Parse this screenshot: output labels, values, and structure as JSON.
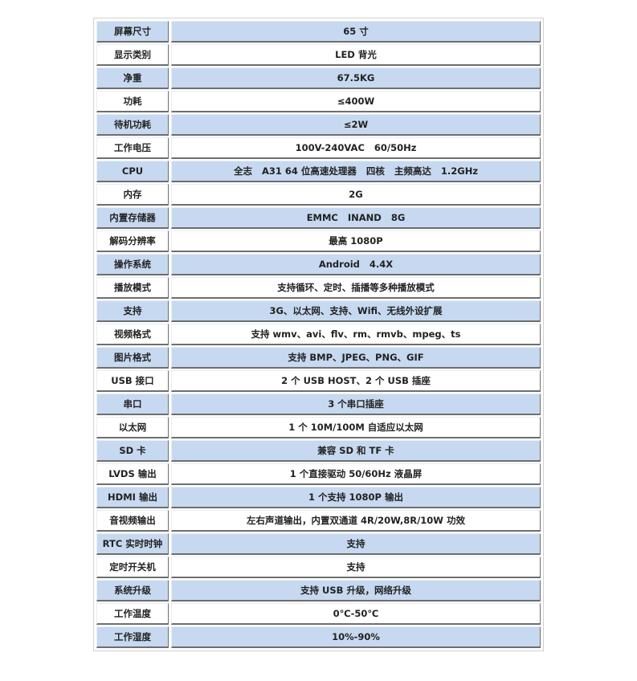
{
  "rows": [
    {
      "label": "屏幕尺寸",
      "value": "65 寸"
    },
    {
      "label": "显示类别",
      "value": "LED 背光"
    },
    {
      "label": "净重",
      "value": "67.5KG"
    },
    {
      "label": "功耗",
      "value": "≤400W"
    },
    {
      "label": "待机功耗",
      "value": "≤2W"
    },
    {
      "label": "工作电压",
      "value": "100V-240VAC   60/50Hz"
    },
    {
      "label": "CPU",
      "value": "全志   A31 64 位高速处理器   四核   主频高达   1.2GHz"
    },
    {
      "label": "内存",
      "value": "2G"
    },
    {
      "label": "内置存储器",
      "value": "EMMC   INAND   8G"
    },
    {
      "label": "解码分辨率",
      "value": "最高 1080P"
    },
    {
      "label": "操作系统",
      "value": "Android   4.4X"
    },
    {
      "label": "播放模式",
      "value": "支持循环、定时、插播等多种播放模式"
    },
    {
      "label": "支持",
      "value": "3G、以太网、支持、Wifi、无线外设扩展"
    },
    {
      "label": "视频格式",
      "value": "支持 wmv、avi、flv、rm、rmvb、mpeg、ts"
    },
    {
      "label": "图片格式",
      "value": "支持 BMP、JPEG、PNG、GIF"
    },
    {
      "label": "USB 接口",
      "value": "2 个 USB HOST、2 个 USB 插座"
    },
    {
      "label": "串口",
      "value": "3 个串口插座"
    },
    {
      "label": "以太网",
      "value": "1 个 10M/100M 自适应以太网"
    },
    {
      "label": "SD 卡",
      "value": "兼容 SD 和 TF 卡"
    },
    {
      "label": "LVDS 输出",
      "value": "1 个直接驱动 50/60Hz 液晶屏"
    },
    {
      "label": "HDMI 输出",
      "value": "1 个支持 1080P 输出"
    },
    {
      "label": "音视频输出",
      "value": "左右声道输出，内置双通道 4R/20W,8R/10W 功效"
    },
    {
      "label": "RTC 实时时钟",
      "value": "支持"
    },
    {
      "label": "定时开关机",
      "value": "支持"
    },
    {
      "label": "系统升级",
      "value": "支持 USB 升级，网络升级"
    },
    {
      "label": "工作温度",
      "value": "0℃-50℃"
    },
    {
      "label": "工作湿度",
      "value": "10%-90%"
    }
  ],
  "colors": {
    "row_blue": "#c6d9f0",
    "row_white": "#ffffff"
  }
}
